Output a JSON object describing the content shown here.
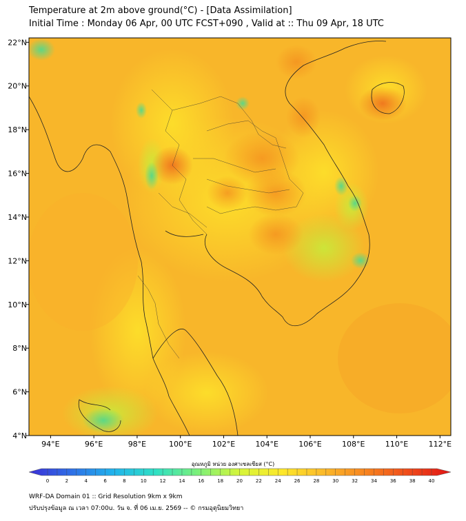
{
  "title": {
    "line1": "Temperature at 2m above ground(°C) - [Data Assimilation]",
    "line2": "Initial Time : Monday 06 Apr, 00 UTC FCST+090 , Valid at :: Thu 09 Apr, 18 UTC"
  },
  "map": {
    "lon_ticks": [
      "94°E",
      "96°E",
      "98°E",
      "100°E",
      "102°E",
      "104°E",
      "106°E",
      "108°E",
      "110°E",
      "112°E"
    ],
    "lat_ticks": [
      "22°N",
      "20°N",
      "18°N",
      "16°N",
      "14°N",
      "12°N",
      "10°N",
      "8°N",
      "6°N",
      "4°N"
    ],
    "lon_range": [
      93,
      112.5
    ],
    "lat_range": [
      4,
      22.2
    ],
    "base_color": "#f8b62a"
  },
  "colorbar": {
    "title": "อุณหภูมิ หน่วย องศาเซลเซียส (°C)",
    "ticks": [
      "0",
      "2",
      "4",
      "6",
      "8",
      "10",
      "12",
      "14",
      "16",
      "18",
      "20",
      "22",
      "24",
      "26",
      "28",
      "30",
      "32",
      "34",
      "36",
      "38",
      "40"
    ],
    "value_range": [
      0,
      40
    ],
    "colors": [
      "#3a2fd6",
      "#2f6fe6",
      "#21b3ec",
      "#2fe0c4",
      "#7cf07a",
      "#d6f53a",
      "#fde82a",
      "#fbb92a",
      "#f7831f",
      "#ef4a1a",
      "#e01515"
    ]
  },
  "footer": {
    "line1": "WRF-DA Domain 01 :: Grid Resolution 9km x 9km",
    "line2": "ปรับปรุงข้อมูล ณ เวลา 07:00u. วัน จ. ที่ 06 เม.ย. 2569 -- © กรมอุตุนิยมวิทยา"
  }
}
